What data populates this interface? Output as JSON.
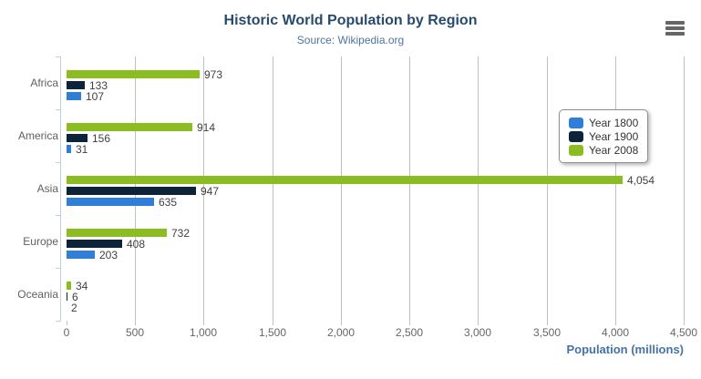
{
  "chart_data": {
    "type": "bar",
    "orientation": "horizontal",
    "title": "Historic World Population by Region",
    "subtitle": "Source: Wikipedia.org",
    "categories": [
      "Africa",
      "America",
      "Asia",
      "Europe",
      "Oceania"
    ],
    "series": [
      {
        "name": "Year 1800",
        "color": "#2f7ed8",
        "values": [
          107,
          31,
          635,
          203,
          2
        ]
      },
      {
        "name": "Year 1900",
        "color": "#0d233a",
        "values": [
          133,
          156,
          947,
          408,
          6
        ]
      },
      {
        "name": "Year 2008",
        "color": "#8bbc21",
        "values": [
          973,
          914,
          4054,
          732,
          34
        ]
      }
    ],
    "bar_display_order_top_to_bottom": [
      "Year 2008",
      "Year 1900",
      "Year 1800"
    ],
    "xlabel": "Population (millions)",
    "ylabel": "",
    "xlim": [
      0,
      4500
    ],
    "xticks": [
      "0",
      "500",
      "1,000",
      "1,500",
      "2,000",
      "2,500",
      "3,000",
      "3,500",
      "4,000",
      "4,500"
    ],
    "grid": true,
    "legend_position": "right-middle",
    "colors": {
      "title": "#274b6d",
      "subtitle": "#4d759e",
      "axis_title": "#4572a7",
      "tick_label": "#666666",
      "category_label": "#606060",
      "data_label": "#404040",
      "gridline": "#c0c0c0",
      "category_axis_line": "#c0d0e0",
      "legend_border": "#909090",
      "legend_text": "#333333"
    }
  },
  "export_menu": {
    "icon": "hamburger-menu-icon"
  }
}
